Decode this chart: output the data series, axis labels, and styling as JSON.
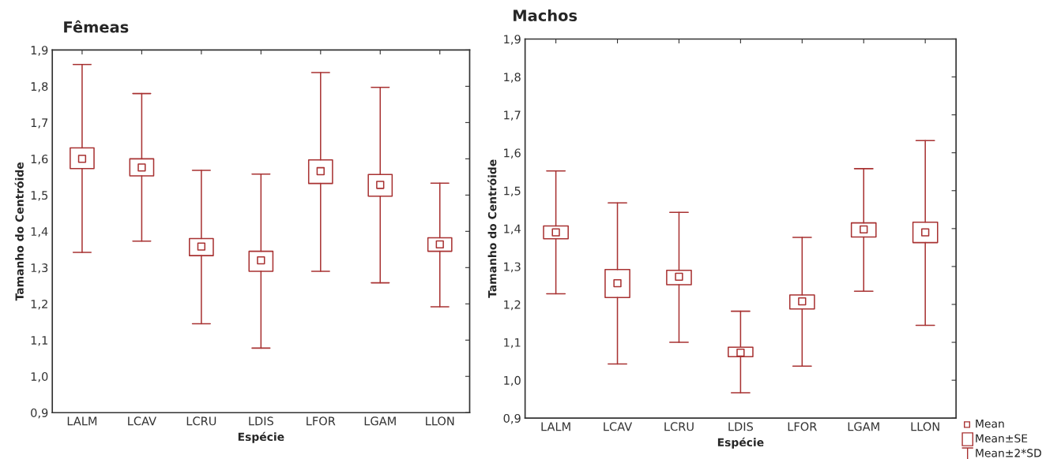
{
  "chart_data": [
    {
      "type": "box",
      "title": "Fêmeas",
      "xlabel": "Espécie",
      "ylabel": "Tamanho do Centróide",
      "categories": [
        "LALM",
        "LCAV",
        "LCRU",
        "LDIS",
        "LFOR",
        "LGAM",
        "LLON"
      ],
      "ylim": [
        0.9,
        1.9
      ],
      "yticks": [
        {
          "value": 0.9,
          "label": "0,9"
        },
        {
          "value": 1.0,
          "label": "1,0"
        },
        {
          "value": 1.1,
          "label": "1,1"
        },
        {
          "value": 1.2,
          "label": "1,2"
        },
        {
          "value": 1.3,
          "label": "1,3"
        },
        {
          "value": 1.4,
          "label": "1,4"
        },
        {
          "value": 1.5,
          "label": "1,5"
        },
        {
          "value": 1.6,
          "label": "1,6"
        },
        {
          "value": 1.7,
          "label": "1,7"
        },
        {
          "value": 1.8,
          "label": "1,8"
        },
        {
          "value": 1.9,
          "label": "1,9"
        }
      ],
      "grid": false,
      "marker": "square",
      "series": [
        {
          "color": "#a83232",
          "boxes": [
            {
              "low": 1.342,
              "q1": 1.573,
              "median": 1.6,
              "q3": 1.63,
              "high": 1.86
            },
            {
              "low": 1.373,
              "q1": 1.553,
              "median": 1.576,
              "q3": 1.6,
              "high": 1.78
            },
            {
              "low": 1.145,
              "q1": 1.333,
              "median": 1.358,
              "q3": 1.38,
              "high": 1.568
            },
            {
              "low": 1.078,
              "q1": 1.29,
              "median": 1.32,
              "q3": 1.345,
              "high": 1.558
            },
            {
              "low": 1.29,
              "q1": 1.532,
              "median": 1.566,
              "q3": 1.597,
              "high": 1.838
            },
            {
              "low": 1.258,
              "q1": 1.497,
              "median": 1.528,
              "q3": 1.557,
              "high": 1.797
            },
            {
              "low": 1.192,
              "q1": 1.345,
              "median": 1.364,
              "q3": 1.382,
              "high": 1.533
            }
          ]
        }
      ]
    },
    {
      "type": "box",
      "title": "Machos",
      "xlabel": "Espécie",
      "ylabel": "Tamanho do Centróide",
      "categories": [
        "LALM",
        "LCAV",
        "LCRU",
        "LDIS",
        "LFOR",
        "LGAM",
        "LLON"
      ],
      "ylim": [
        0.9,
        1.9
      ],
      "yticks": [
        {
          "value": 0.9,
          "label": "0,9"
        },
        {
          "value": 1.0,
          "label": "1,0"
        },
        {
          "value": 1.1,
          "label": "1,1"
        },
        {
          "value": 1.2,
          "label": "1,2"
        },
        {
          "value": 1.3,
          "label": "1,3"
        },
        {
          "value": 1.4,
          "label": "1,4"
        },
        {
          "value": 1.5,
          "label": "1,5"
        },
        {
          "value": 1.6,
          "label": "1,6"
        },
        {
          "value": 1.7,
          "label": "1,7"
        },
        {
          "value": 1.8,
          "label": "1,8"
        },
        {
          "value": 1.9,
          "label": "1,9"
        }
      ],
      "grid": false,
      "marker": "square",
      "annotations": [
        "Mean",
        "Mean±SE",
        "Mean±2*SD"
      ],
      "series": [
        {
          "color": "#a83232",
          "boxes": [
            {
              "low": 1.228,
              "q1": 1.373,
              "median": 1.39,
              "q3": 1.407,
              "high": 1.552
            },
            {
              "low": 1.043,
              "q1": 1.218,
              "median": 1.256,
              "q3": 1.292,
              "high": 1.468
            },
            {
              "low": 1.1,
              "q1": 1.252,
              "median": 1.273,
              "q3": 1.29,
              "high": 1.443
            },
            {
              "low": 0.967,
              "q1": 1.062,
              "median": 1.073,
              "q3": 1.087,
              "high": 1.182
            },
            {
              "low": 1.037,
              "q1": 1.188,
              "median": 1.208,
              "q3": 1.225,
              "high": 1.377
            },
            {
              "low": 1.235,
              "q1": 1.378,
              "median": 1.398,
              "q3": 1.415,
              "high": 1.558
            },
            {
              "low": 1.145,
              "q1": 1.363,
              "median": 1.39,
              "q3": 1.417,
              "high": 1.632
            }
          ]
        }
      ]
    }
  ]
}
